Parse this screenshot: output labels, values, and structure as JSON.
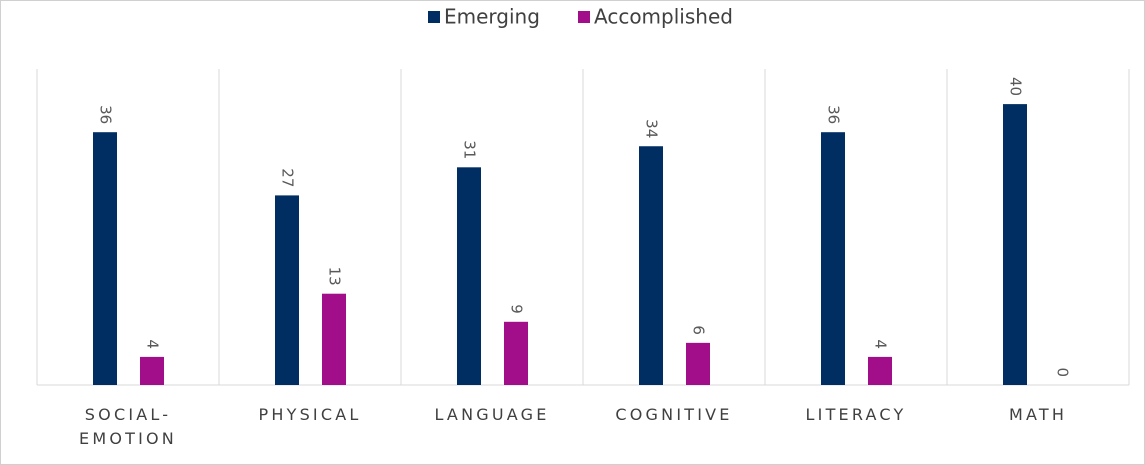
{
  "chart_data": {
    "type": "bar",
    "categories": [
      "SOCIAL-EMOTION",
      "PHYSICAL",
      "LANGUAGE",
      "COGNITIVE",
      "LITERACY",
      "MATH"
    ],
    "series": [
      {
        "name": "Emerging",
        "color": "#002d62",
        "values": [
          36,
          27,
          31,
          34,
          36,
          40
        ]
      },
      {
        "name": "Accomplished",
        "color": "#a20d89",
        "values": [
          4,
          13,
          9,
          6,
          4,
          0
        ]
      }
    ],
    "ylim": [
      0,
      45
    ],
    "legend": "top"
  }
}
